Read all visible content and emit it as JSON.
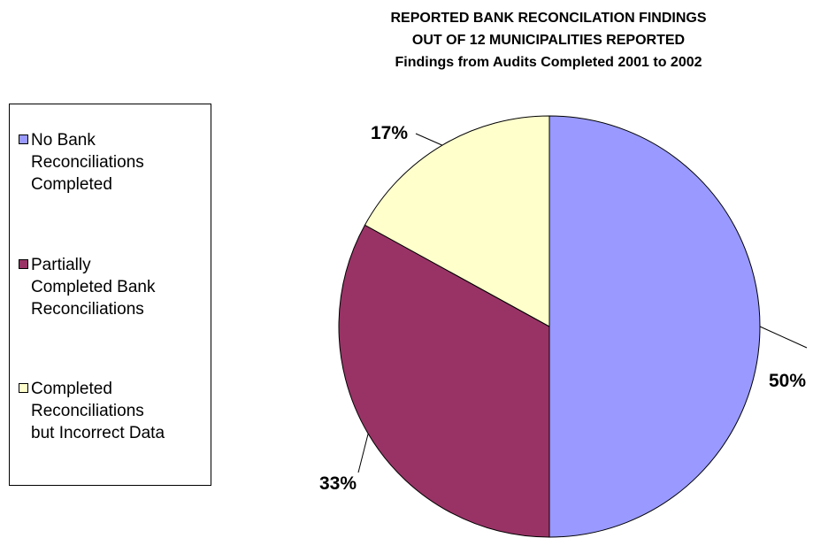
{
  "chart_data": {
    "type": "pie",
    "title": [
      "REPORTED BANK RECONCILATION FINDINGS",
      "OUT OF 12 MUNICIPALITIES REPORTED",
      "Findings from Audits Completed 2001 to 2002"
    ],
    "categories": [
      "No Bank Reconciliations Completed",
      "Partially Completed Bank Reconciliations",
      "Completed Reconciliations but Incorrect Data"
    ],
    "values": [
      50,
      33,
      17
    ],
    "labels": [
      "50%",
      "33%",
      "17%"
    ],
    "colors": [
      "#9999ff",
      "#993366",
      "#ffffcc"
    ],
    "legend_placement": "left"
  },
  "legend": [
    {
      "label": "No Bank\nReconciliations\nCompleted",
      "color": "#9999ff"
    },
    {
      "label": "Partially\nCompleted Bank\nReconciliations",
      "color": "#993366"
    },
    {
      "label": "Completed\nReconciliations\nbut Incorrect Data",
      "color": "#ffffcc"
    }
  ]
}
